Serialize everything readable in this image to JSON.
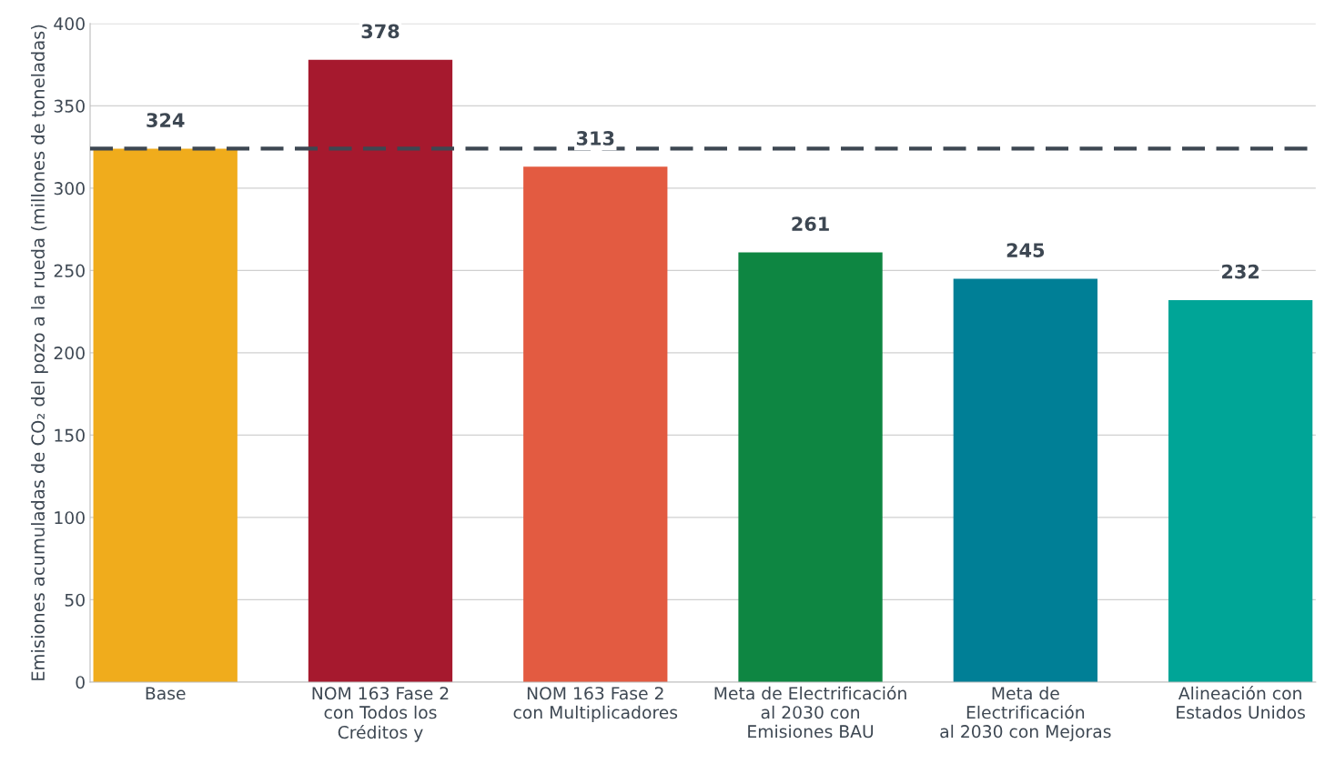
{
  "chart_data": {
    "type": "bar",
    "ylabel": "Emisiones acumuladas de CO₂ del pozo a la rueda (millones de toneladas)",
    "categories": [
      "Base",
      "NOM 163 Fase 2\ncon Todos los\nCréditos y",
      "NOM 163 Fase 2\ncon Multiplicadores",
      "Meta de Electrificación\nal 2030 con\nEmisiones BAU",
      "Meta de\nElectrificación\nal 2030 con Mejoras",
      "Alineación con\nEstados Unidos"
    ],
    "values": [
      324,
      378,
      313,
      261,
      245,
      232
    ],
    "colors": [
      "#f0ac1c",
      "#a6192e",
      "#e35b41",
      "#0e8642",
      "#007f96",
      "#00a597"
    ],
    "ylim": [
      0,
      400
    ],
    "yticks": [
      0,
      50,
      100,
      150,
      200,
      250,
      300,
      350,
      400
    ],
    "grid": "y",
    "data_labels": true,
    "ref_lines": [
      {
        "axis": "y",
        "value": 324,
        "color": "#3d4752",
        "line_style": "dashed"
      }
    ]
  }
}
